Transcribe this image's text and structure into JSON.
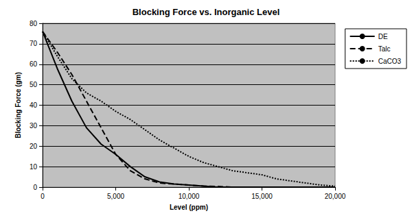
{
  "chart_data": {
    "type": "line",
    "title": "Blocking Force vs. Inorganic Level",
    "x_label": "Level (ppm)",
    "y_label": "Blocking Force (gm)",
    "x": [
      0,
      1000,
      2000,
      3000,
      4000,
      5000,
      6000,
      7000,
      8000,
      9000,
      10000,
      11000,
      12000,
      13000,
      14000,
      15000,
      16000,
      17000,
      18000,
      19000,
      20000
    ],
    "series": [
      {
        "name": "DE",
        "color": "#000000",
        "line_style": "solid",
        "values": [
          76,
          58,
          42,
          29,
          21,
          16,
          10,
          5,
          2.5,
          1.5,
          1,
          0.5,
          0,
          0,
          0,
          0,
          0,
          0,
          0,
          0,
          0
        ]
      },
      {
        "name": "Talc",
        "color": "#000000",
        "line_style": "dashed",
        "values": [
          76,
          66,
          55,
          42,
          29,
          16,
          8,
          4,
          2,
          1.5,
          1,
          0.5,
          0.3,
          0,
          0,
          0,
          0,
          0,
          0,
          0,
          0
        ]
      },
      {
        "name": "CaCO3",
        "color": "#000000",
        "line_style": "dotted",
        "values": [
          76,
          64,
          53,
          46,
          42,
          37,
          33,
          28,
          23,
          19,
          15,
          12,
          10,
          8,
          7,
          6,
          4,
          3,
          2,
          1,
          0.5
        ]
      }
    ],
    "xlim": [
      0,
      20000
    ],
    "xticks": [
      0,
      {
        "value": 5000,
        "label": "5,000"
      },
      {
        "value": 10000,
        "label": "10,000"
      },
      {
        "value": 15000,
        "label": "15,000"
      },
      {
        "value": 20000,
        "label": "20,000"
      }
    ],
    "ylim": [
      0,
      80
    ],
    "yticks": [
      0,
      10,
      20,
      30,
      40,
      50,
      60,
      70,
      80
    ],
    "grid": true,
    "legend": "right"
  }
}
